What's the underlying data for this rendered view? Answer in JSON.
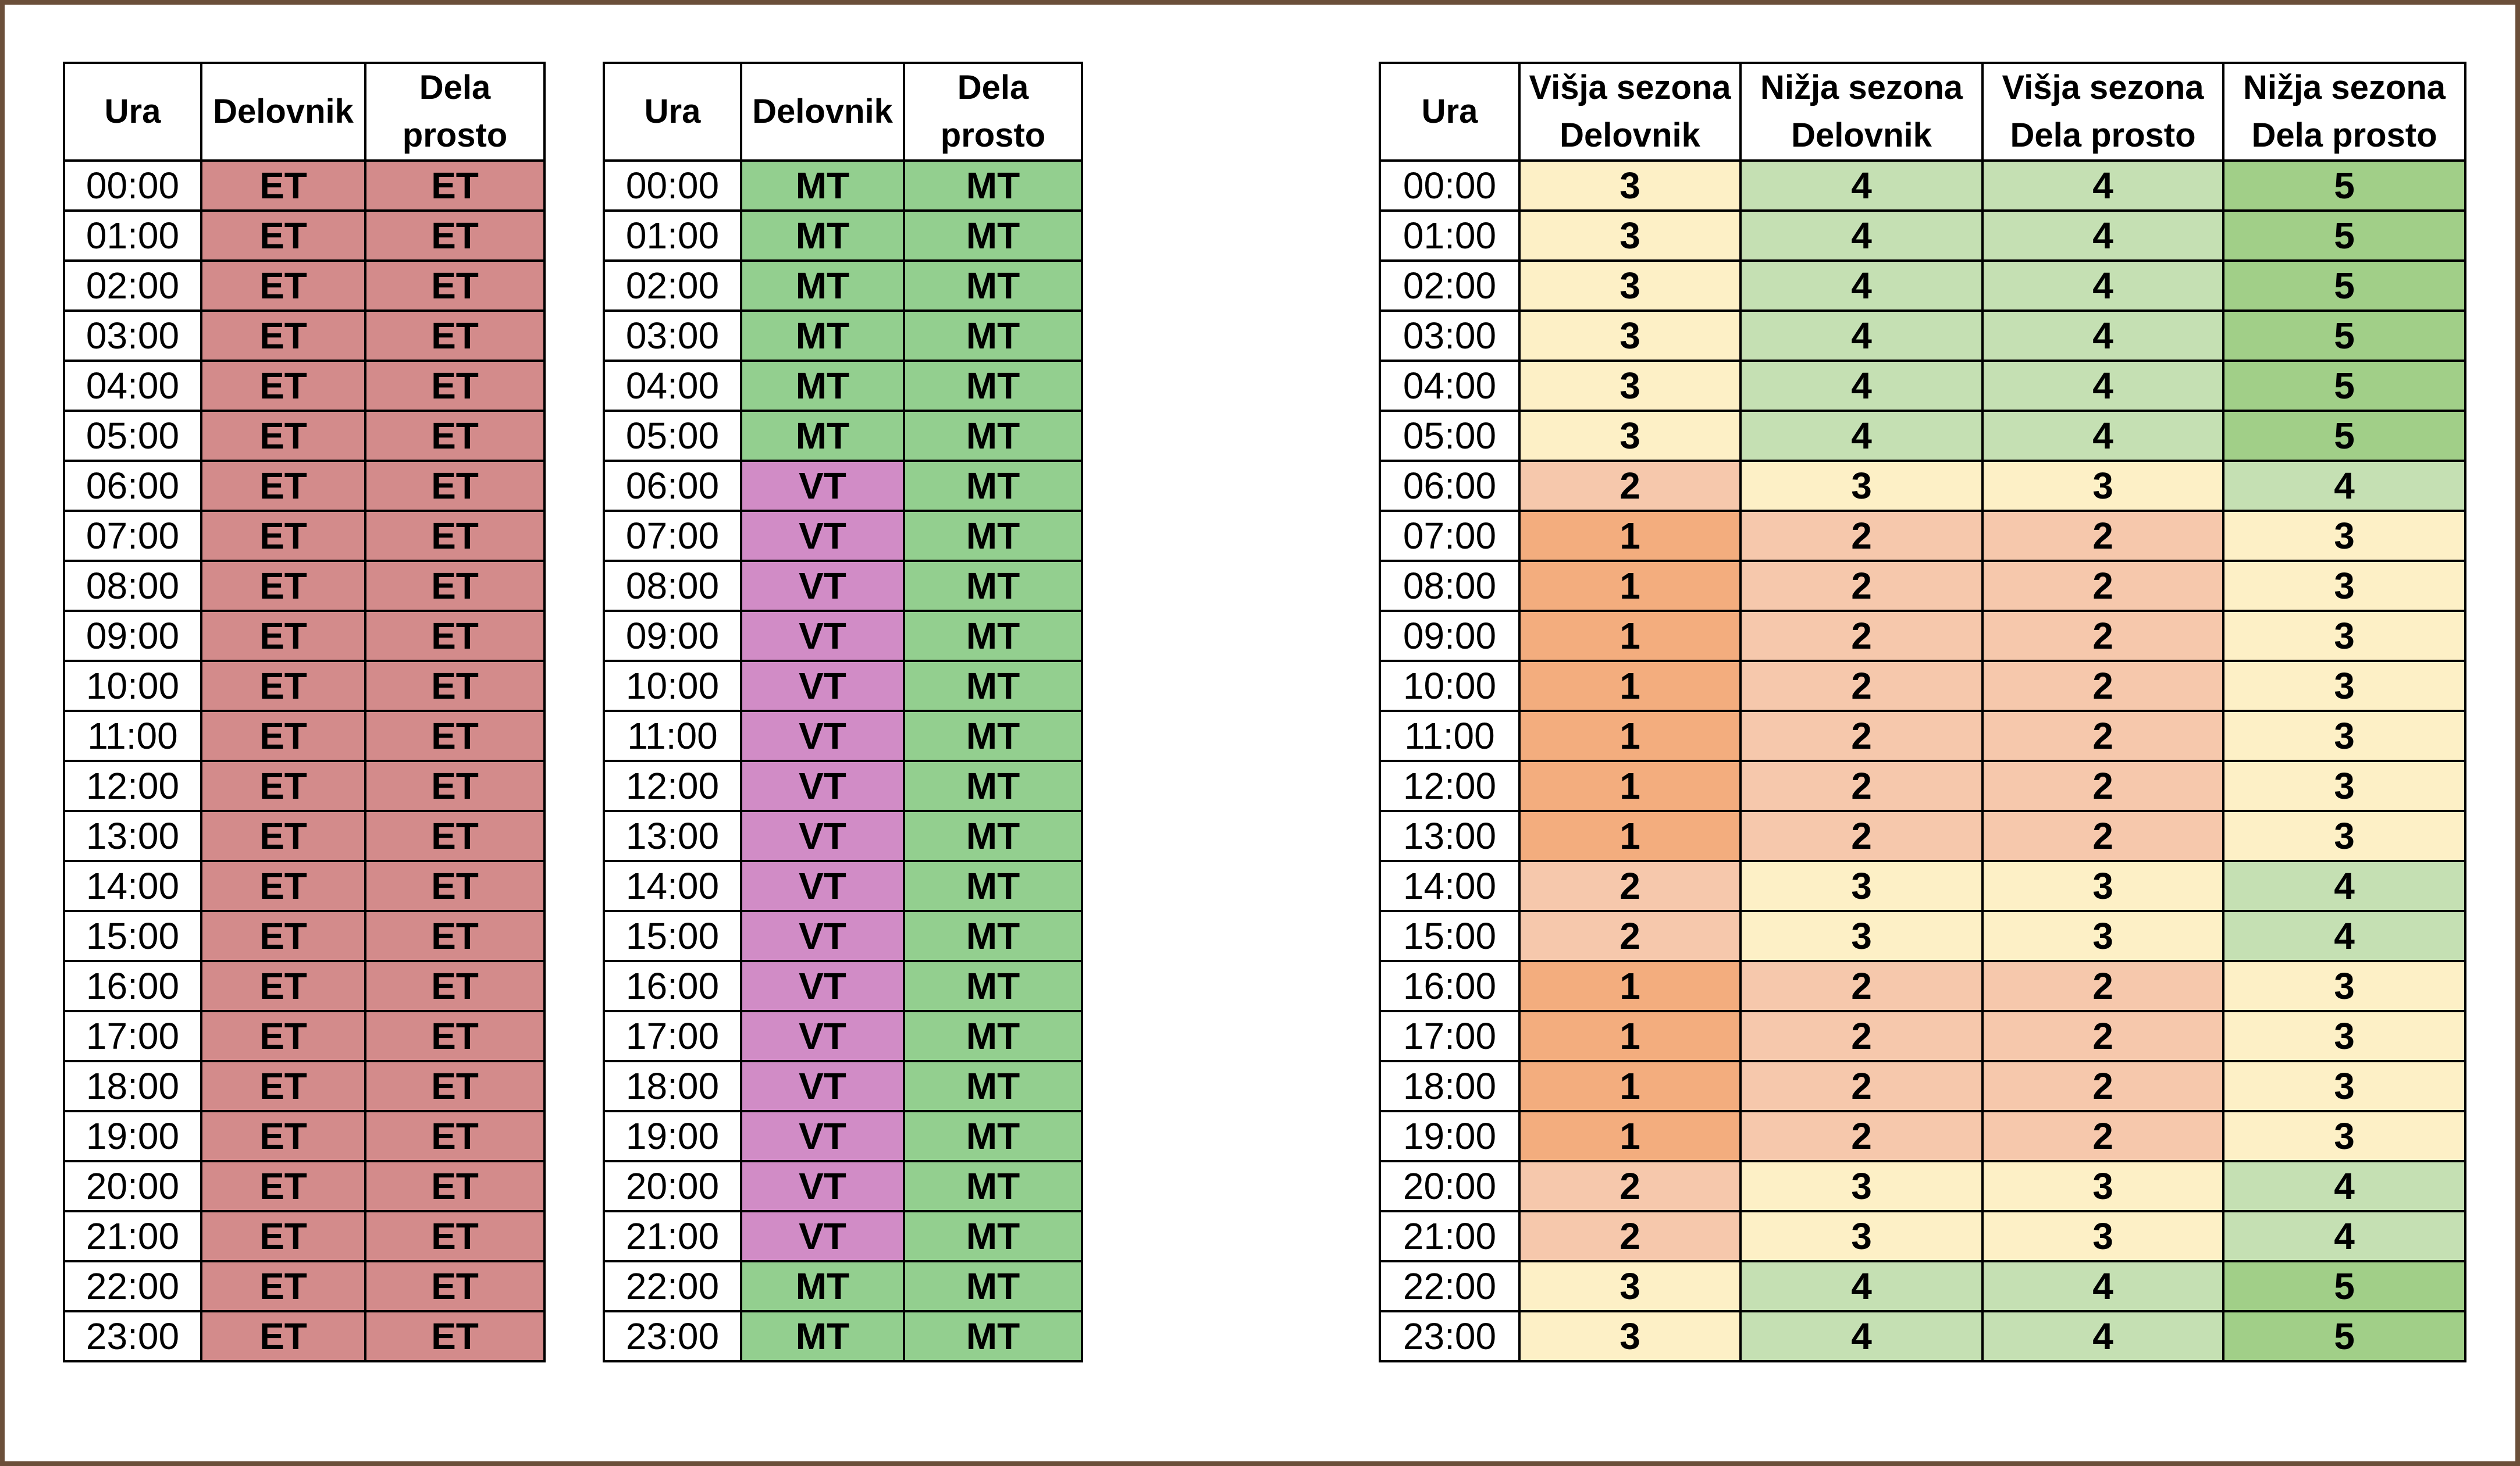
{
  "tables": [
    {
      "id": "tariff-et",
      "headers": [
        "Ura",
        "Delovnik",
        "Dela prosto"
      ],
      "rows": [
        [
          "00:00",
          "ET",
          "ET"
        ],
        [
          "01:00",
          "ET",
          "ET"
        ],
        [
          "02:00",
          "ET",
          "ET"
        ],
        [
          "03:00",
          "ET",
          "ET"
        ],
        [
          "04:00",
          "ET",
          "ET"
        ],
        [
          "05:00",
          "ET",
          "ET"
        ],
        [
          "06:00",
          "ET",
          "ET"
        ],
        [
          "07:00",
          "ET",
          "ET"
        ],
        [
          "08:00",
          "ET",
          "ET"
        ],
        [
          "09:00",
          "ET",
          "ET"
        ],
        [
          "10:00",
          "ET",
          "ET"
        ],
        [
          "11:00",
          "ET",
          "ET"
        ],
        [
          "12:00",
          "ET",
          "ET"
        ],
        [
          "13:00",
          "ET",
          "ET"
        ],
        [
          "14:00",
          "ET",
          "ET"
        ],
        [
          "15:00",
          "ET",
          "ET"
        ],
        [
          "16:00",
          "ET",
          "ET"
        ],
        [
          "17:00",
          "ET",
          "ET"
        ],
        [
          "18:00",
          "ET",
          "ET"
        ],
        [
          "19:00",
          "ET",
          "ET"
        ],
        [
          "20:00",
          "ET",
          "ET"
        ],
        [
          "21:00",
          "ET",
          "ET"
        ],
        [
          "22:00",
          "ET",
          "ET"
        ],
        [
          "23:00",
          "ET",
          "ET"
        ]
      ]
    },
    {
      "id": "tariff-vt-mt",
      "headers": [
        "Ura",
        "Delovnik",
        "Dela prosto"
      ],
      "rows": [
        [
          "00:00",
          "MT",
          "MT"
        ],
        [
          "01:00",
          "MT",
          "MT"
        ],
        [
          "02:00",
          "MT",
          "MT"
        ],
        [
          "03:00",
          "MT",
          "MT"
        ],
        [
          "04:00",
          "MT",
          "MT"
        ],
        [
          "05:00",
          "MT",
          "MT"
        ],
        [
          "06:00",
          "VT",
          "MT"
        ],
        [
          "07:00",
          "VT",
          "MT"
        ],
        [
          "08:00",
          "VT",
          "MT"
        ],
        [
          "09:00",
          "VT",
          "MT"
        ],
        [
          "10:00",
          "VT",
          "MT"
        ],
        [
          "11:00",
          "VT",
          "MT"
        ],
        [
          "12:00",
          "VT",
          "MT"
        ],
        [
          "13:00",
          "VT",
          "MT"
        ],
        [
          "14:00",
          "VT",
          "MT"
        ],
        [
          "15:00",
          "VT",
          "MT"
        ],
        [
          "16:00",
          "VT",
          "MT"
        ],
        [
          "17:00",
          "VT",
          "MT"
        ],
        [
          "18:00",
          "VT",
          "MT"
        ],
        [
          "19:00",
          "VT",
          "MT"
        ],
        [
          "20:00",
          "VT",
          "MT"
        ],
        [
          "21:00",
          "VT",
          "MT"
        ],
        [
          "22:00",
          "MT",
          "MT"
        ],
        [
          "23:00",
          "MT",
          "MT"
        ]
      ]
    },
    {
      "id": "time-blocks",
      "headers": [
        "Ura",
        "Višja sezona Delovnik",
        "Nižja sezona Delovnik",
        "Višja sezona Dela prosto",
        "Nižja sezona Dela prosto"
      ],
      "rows": [
        [
          "00:00",
          "3",
          "4",
          "4",
          "5"
        ],
        [
          "01:00",
          "3",
          "4",
          "4",
          "5"
        ],
        [
          "02:00",
          "3",
          "4",
          "4",
          "5"
        ],
        [
          "03:00",
          "3",
          "4",
          "4",
          "5"
        ],
        [
          "04:00",
          "3",
          "4",
          "4",
          "5"
        ],
        [
          "05:00",
          "3",
          "4",
          "4",
          "5"
        ],
        [
          "06:00",
          "2",
          "3",
          "3",
          "4"
        ],
        [
          "07:00",
          "1",
          "2",
          "2",
          "3"
        ],
        [
          "08:00",
          "1",
          "2",
          "2",
          "3"
        ],
        [
          "09:00",
          "1",
          "2",
          "2",
          "3"
        ],
        [
          "10:00",
          "1",
          "2",
          "2",
          "3"
        ],
        [
          "11:00",
          "1",
          "2",
          "2",
          "3"
        ],
        [
          "12:00",
          "1",
          "2",
          "2",
          "3"
        ],
        [
          "13:00",
          "1",
          "2",
          "2",
          "3"
        ],
        [
          "14:00",
          "2",
          "3",
          "3",
          "4"
        ],
        [
          "15:00",
          "2",
          "3",
          "3",
          "4"
        ],
        [
          "16:00",
          "1",
          "2",
          "2",
          "3"
        ],
        [
          "17:00",
          "1",
          "2",
          "2",
          "3"
        ],
        [
          "18:00",
          "1",
          "2",
          "2",
          "3"
        ],
        [
          "19:00",
          "1",
          "2",
          "2",
          "3"
        ],
        [
          "20:00",
          "2",
          "3",
          "3",
          "4"
        ],
        [
          "21:00",
          "2",
          "3",
          "3",
          "4"
        ],
        [
          "22:00",
          "3",
          "4",
          "4",
          "5"
        ],
        [
          "23:00",
          "3",
          "4",
          "4",
          "5"
        ]
      ]
    }
  ],
  "colors": {
    "frame_border": "#6b4f3a",
    "ET": "#d38b8b",
    "MT": "#93cf8f",
    "VT": "#d18cc6",
    "block_1": "#f3ad7e",
    "block_2": "#f6c8ac",
    "block_3": "#fdf0c6",
    "block_4": "#c5e0b3",
    "block_5": "#a1cf88"
  }
}
